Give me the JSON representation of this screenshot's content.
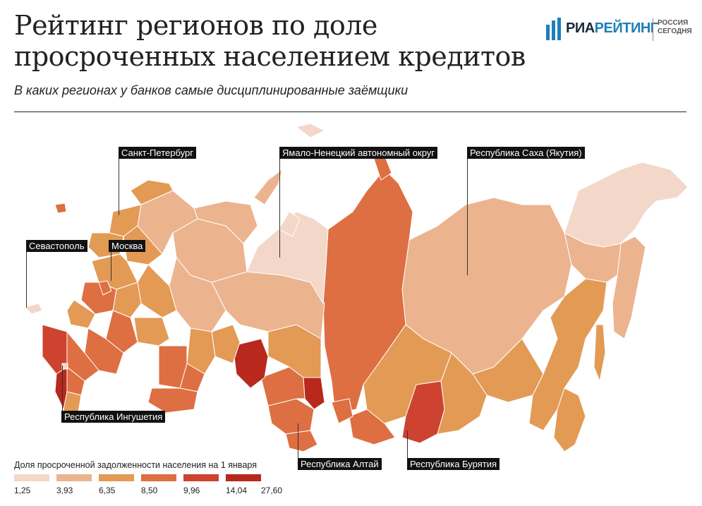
{
  "title": "Рейтинг регионов по доле просроченных населением кредитов",
  "subtitle": "В каких регионах у банков самые дисциплинированные заёмщики",
  "logo": {
    "ria": "РИА",
    "rating": "РЕЙТИНГ",
    "sub1": "РОССИЯ",
    "sub2": "СЕГОДНЯ"
  },
  "colors": {
    "scale": [
      "#f3d7c8",
      "#ebb48f",
      "#e39a55",
      "#dd6f42",
      "#cd4330",
      "#b8281d"
    ],
    "border": "#ffffff"
  },
  "callouts": {
    "spb": "Санкт-Петербург",
    "yamal": "Ямало-Ненецкий автономный округ",
    "sakha": "Республика Саха (Якутия)",
    "sevastopol": "Севастополь",
    "moscow": "Москва",
    "ingushetia": "Республика Ингушетия",
    "altai": "Республика Алтай",
    "buryatia": "Республика Бурятия"
  },
  "legend": {
    "title": "Доля просроченной задолженности населения на 1 января",
    "ticks": [
      "1,25",
      "3,93",
      "6,35",
      "8,50",
      "9,96",
      "14,04",
      "27,60"
    ]
  }
}
